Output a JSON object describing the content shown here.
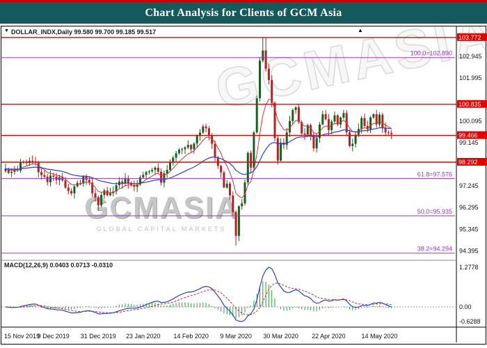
{
  "title": "Chart Analysis for Clients of GCM Asia",
  "symbol_bar": {
    "dropdown_icon": "▼",
    "text": "DOLLAR_INDX,Daily  99.580 99.700 99.185 99.517"
  },
  "shift_marker_icon": "▲",
  "macd_bar": {
    "text": "MACD(12,26,9) 0.0403 0.0713 -0.0310"
  },
  "watermark": {
    "main": "GCMASIA",
    "sub": "GLOBAL CAPITAL MARKETS",
    "outline": "GCMASIA"
  },
  "chart_data": {
    "type": "candlestick",
    "symbol": "DOLLAR_INDX",
    "timeframe": "Daily",
    "current_bar": {
      "open": 99.58,
      "high": 99.7,
      "low": 99.185,
      "close": 99.517
    },
    "first_open": 97.9,
    "closes": [
      98.0,
      97.82,
      97.87,
      98.0,
      97.92,
      98.27,
      98.3,
      98.26,
      98.35,
      98.32,
      98.27,
      97.85,
      97.72,
      97.65,
      97.41,
      97.7,
      97.65,
      97.5,
      97.63,
      97.49,
      97.17,
      97.02,
      96.92,
      97.23,
      97.38,
      97.35,
      97.68,
      97.51,
      97.39,
      96.92,
      96.74,
      96.39,
      96.85,
      97.05,
      96.84,
      96.93,
      97.0,
      97.28,
      97.44,
      97.35,
      97.58,
      97.37,
      97.3,
      97.21,
      97.31,
      97.62,
      97.73,
      97.85,
      97.89,
      97.95,
      98.05,
      97.87,
      97.39,
      97.8,
      97.95,
      98.28,
      98.49,
      98.68,
      98.84,
      98.86,
      98.94,
      99.05,
      98.86,
      99.11,
      99.45,
      99.59,
      99.86,
      99.78,
      99.46,
      99.1,
      98.49,
      98.13,
      97.84,
      97.18,
      97.35,
      96.83,
      96.1,
      95.05,
      96.35,
      96.48,
      97.4,
      98.7,
      98.05,
      99.6,
      101.1,
      102.75,
      103.2,
      102.4,
      101.9,
      100.9,
      99.35,
      98.36,
      99.15,
      99.05,
      99.6,
      100.1,
      100.58,
      100.7,
      100.05,
      99.55,
      99.5,
      99.92,
      99.48,
      98.9,
      99.35,
      99.95,
      100.4,
      100.18,
      99.7,
      100.08,
      100.35,
      99.95,
      100.25,
      100.45,
      99.6,
      99.0,
      99.1,
      99.5,
      99.75,
      100.23,
      99.88,
      99.73,
      100.26,
      100.4,
      99.95,
      100.38,
      99.8,
      99.6,
      99.58,
      99.52
    ],
    "x_labels": [
      {
        "text": "15 Nov 2019",
        "index": 0
      },
      {
        "text": "9 Dec 2019",
        "index": 16
      },
      {
        "text": "31 Dec 2019",
        "index": 31
      },
      {
        "text": "23 Jan 2020",
        "index": 46
      },
      {
        "text": "14 Feb 2020",
        "index": 62
      },
      {
        "text": "9 Mar 2020",
        "index": 77
      },
      {
        "text": "30 Mar 2020",
        "index": 92
      },
      {
        "text": "22 Apr 2020",
        "index": 108
      },
      {
        "text": "14 May 2020",
        "index": 125
      }
    ],
    "price_axis": {
      "min": 94.1,
      "max": 103.95,
      "ticks": [
        102.945,
        101.995,
        100.095,
        99.145,
        97.245,
        96.295,
        95.345,
        94.395
      ]
    },
    "levels_red": [
      103.772,
      100.835,
      99.466,
      98.292
    ],
    "levels_fib": [
      {
        "label": "100.0=102.890",
        "value": 102.89
      },
      {
        "label": "61.8=97.576",
        "value": 97.576
      },
      {
        "label": "50.0=95.935",
        "value": 95.935
      },
      {
        "label": "38.2=94.294",
        "value": 94.294
      }
    ],
    "macd": {
      "params": "12,26,9",
      "macd_value": "0.0403",
      "signal_value": "0.0713",
      "hist_value": "-0.0310",
      "axis": [
        "1.2778",
        "0.00",
        "-0.6288"
      ]
    },
    "colors": {
      "up": "#1b5e20",
      "down": "#b22222",
      "ma_fast": "#e03030",
      "ma_slow": "#2244cc",
      "macd_line": "#2244cc",
      "signal_line": "#dd2222",
      "hist": "#2e9e3e",
      "level_red": "#e60000",
      "level_fib": "#9933cc",
      "titlebar": "#16595c",
      "topstrip": "#cc0000"
    }
  }
}
